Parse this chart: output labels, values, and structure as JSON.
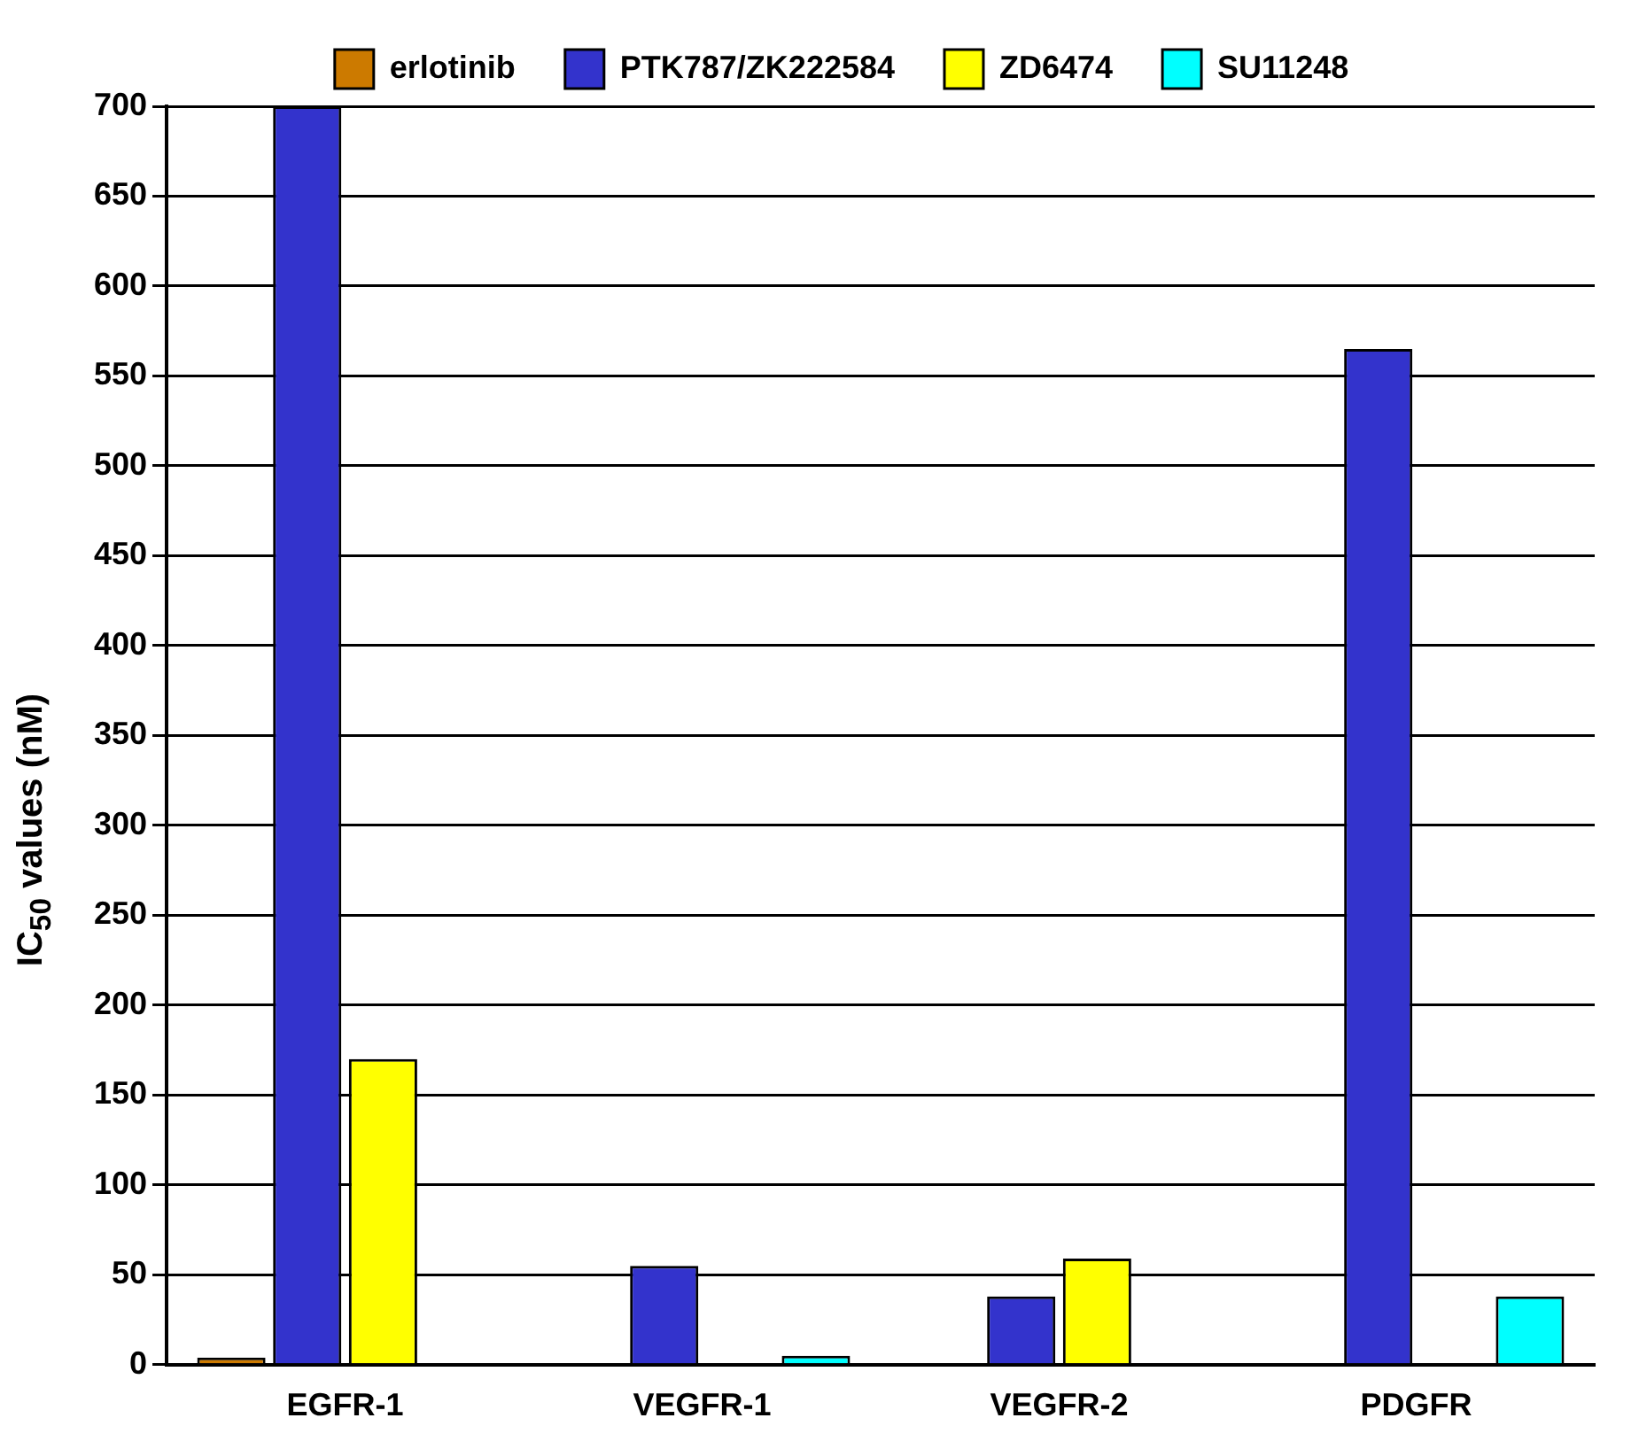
{
  "chart_data": {
    "type": "bar",
    "ylabel": "IC$_{50}$ values (nM)",
    "categories": [
      "EGFR-1",
      "VEGFR-1",
      "VEGFR-2",
      "PDGFR"
    ],
    "series": [
      {
        "name": "erlotinib",
        "color": "#cc7a00",
        "values": [
          1,
          null,
          null,
          null
        ]
      },
      {
        "name": "PTK787/ZK222584",
        "color": "#3333cc",
        "values": [
          700,
          55,
          38,
          565
        ]
      },
      {
        "name": "ZD6474",
        "color": "#ffff00",
        "values": [
          170,
          null,
          59,
          null
        ]
      },
      {
        "name": "SU11248",
        "color": "#00ffff",
        "values": [
          null,
          5,
          null,
          38
        ]
      }
    ],
    "ylim": [
      0,
      700
    ],
    "yticks": [
      0,
      50,
      100,
      150,
      200,
      250,
      300,
      350,
      400,
      450,
      500,
      550,
      600,
      650,
      700
    ],
    "grid": "y",
    "legend": "top"
  }
}
